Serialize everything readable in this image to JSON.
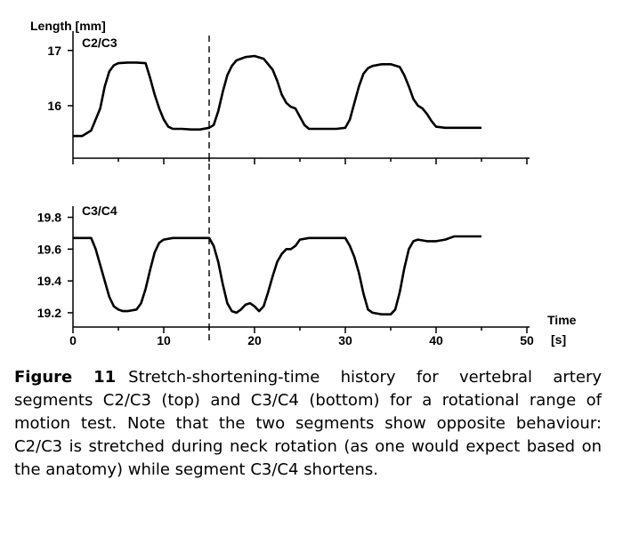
{
  "chart_data": [
    {
      "type": "line",
      "title": "C2/C3",
      "ylabel": "Length [mm]",
      "xlabel": "",
      "xlim": [
        0,
        50
      ],
      "ylim": [
        15.05,
        17.35
      ],
      "yticks": [
        16,
        17
      ],
      "ytick_labels": [
        "16",
        "17"
      ],
      "marker_x": 15,
      "series": [
        {
          "name": "C2/C3",
          "x": [
            0,
            1,
            2,
            3,
            3.5,
            4,
            4.5,
            5,
            6,
            7,
            8,
            8.5,
            9,
            9.5,
            10,
            10.5,
            11,
            12,
            13,
            14,
            15,
            15.5,
            16,
            16.5,
            17,
            17.5,
            18,
            19,
            20,
            21,
            22,
            22.5,
            23,
            23.5,
            24,
            24.5,
            25,
            25.5,
            26,
            27,
            28,
            29,
            30,
            30.5,
            31,
            31.5,
            32,
            32.5,
            33,
            34,
            35,
            36,
            36.5,
            37,
            37.5,
            38,
            38.5,
            39,
            39.5,
            40,
            41,
            42,
            43,
            44,
            45
          ],
          "y": [
            15.45,
            15.45,
            15.55,
            15.95,
            16.35,
            16.62,
            16.73,
            16.77,
            16.78,
            16.78,
            16.77,
            16.5,
            16.2,
            15.95,
            15.75,
            15.62,
            15.58,
            15.58,
            15.57,
            15.57,
            15.6,
            15.65,
            15.9,
            16.25,
            16.55,
            16.72,
            16.82,
            16.88,
            16.9,
            16.85,
            16.65,
            16.45,
            16.2,
            16.05,
            15.98,
            15.95,
            15.8,
            15.65,
            15.58,
            15.58,
            15.58,
            15.58,
            15.6,
            15.75,
            16.05,
            16.35,
            16.58,
            16.68,
            16.72,
            16.75,
            16.75,
            16.7,
            16.55,
            16.35,
            16.12,
            16.0,
            15.95,
            15.85,
            15.72,
            15.62,
            15.6,
            15.6,
            15.6,
            15.6,
            15.6
          ]
        }
      ]
    },
    {
      "type": "line",
      "title": "C3/C4",
      "ylabel": "",
      "xlabel": "Time",
      "xunit": "[s]",
      "xlim": [
        0,
        50
      ],
      "xticks": [
        0,
        10,
        20,
        30,
        40,
        50
      ],
      "xtick_labels": [
        "0",
        "10",
        "20",
        "30",
        "40",
        "50"
      ],
      "ylim": [
        19.11,
        19.87
      ],
      "yticks": [
        19.2,
        19.4,
        19.6,
        19.8
      ],
      "ytick_labels": [
        "19.2",
        "19.4",
        "19.6",
        "19.8"
      ],
      "marker_x": 15,
      "series": [
        {
          "name": "C3/C4",
          "x": [
            0,
            1,
            2,
            2.5,
            3,
            3.5,
            4,
            4.5,
            5,
            5.5,
            6,
            7,
            7.5,
            8,
            8.5,
            9,
            9.5,
            10,
            11,
            12,
            13,
            14,
            15,
            15.5,
            16,
            16.5,
            17,
            17.5,
            18,
            18.5,
            19,
            19.5,
            20,
            20.5,
            21,
            21.5,
            22,
            22.5,
            23,
            23.5,
            24,
            24.5,
            25,
            26,
            27,
            28,
            29,
            30,
            30.5,
            31,
            31.5,
            32,
            32.5,
            33,
            34,
            35,
            35.5,
            36,
            36.5,
            37,
            37.5,
            38,
            39,
            40,
            41,
            42,
            43,
            44,
            45
          ],
          "y": [
            19.67,
            19.67,
            19.67,
            19.6,
            19.5,
            19.4,
            19.3,
            19.24,
            19.22,
            19.21,
            19.21,
            19.22,
            19.26,
            19.35,
            19.47,
            19.58,
            19.64,
            19.66,
            19.67,
            19.67,
            19.67,
            19.67,
            19.67,
            19.62,
            19.52,
            19.38,
            19.26,
            19.21,
            19.2,
            19.22,
            19.25,
            19.26,
            19.24,
            19.21,
            19.24,
            19.33,
            19.43,
            19.52,
            19.57,
            19.6,
            19.6,
            19.62,
            19.66,
            19.67,
            19.67,
            19.67,
            19.67,
            19.67,
            19.62,
            19.55,
            19.45,
            19.32,
            19.22,
            19.2,
            19.19,
            19.19,
            19.22,
            19.33,
            19.48,
            19.6,
            19.65,
            19.66,
            19.65,
            19.65,
            19.66,
            19.68,
            19.68,
            19.68,
            19.68
          ]
        }
      ]
    }
  ],
  "caption": {
    "label": "Figure 11",
    "text": "Stretch-shortening-time history for vertebral artery segments C2/C3 (top) and C3/C4 (bottom) for a rotational range of motion test. Note that the two segments show opposite behaviour: C2/C3 is stretched during neck rotation (as one would expect based on the anatomy) while segment C3/C4 shortens."
  }
}
